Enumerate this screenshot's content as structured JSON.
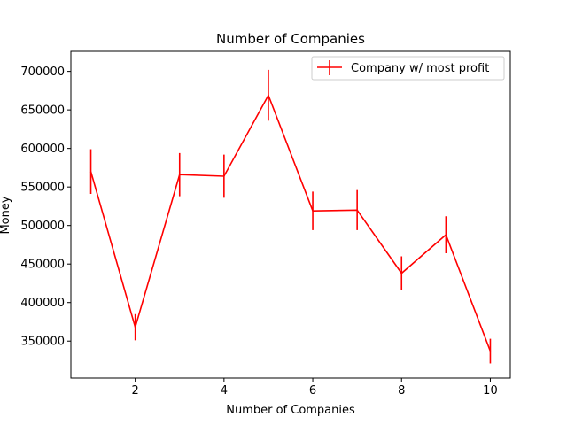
{
  "chart_data": {
    "type": "line",
    "title": "Number of Companies",
    "xlabel": "Number of Companies",
    "ylabel": "Money",
    "xlim": [
      0.55,
      10.45
    ],
    "ylim": [
      302000,
      726000
    ],
    "x_ticks": [
      2,
      4,
      6,
      8,
      10
    ],
    "y_ticks": [
      350000,
      400000,
      450000,
      500000,
      550000,
      600000,
      650000,
      700000
    ],
    "x_tick_labels": [
      "2",
      "4",
      "6",
      "8",
      "10"
    ],
    "y_tick_labels": [
      "350000",
      "400000",
      "450000",
      "500000",
      "550000",
      "600000",
      "650000",
      "700000"
    ],
    "grid": false,
    "legend_position": "upper right",
    "series": [
      {
        "name": "Company w/ most profit",
        "color": "#ff0000",
        "x": [
          1,
          2,
          3,
          4,
          5,
          6,
          7,
          8,
          9,
          10
        ],
        "y": [
          570000,
          368000,
          566000,
          564000,
          669000,
          519000,
          520000,
          438000,
          488000,
          337000
        ],
        "yerr": [
          29000,
          17000,
          28000,
          28000,
          33000,
          25000,
          26000,
          22000,
          24000,
          16000
        ]
      }
    ]
  }
}
